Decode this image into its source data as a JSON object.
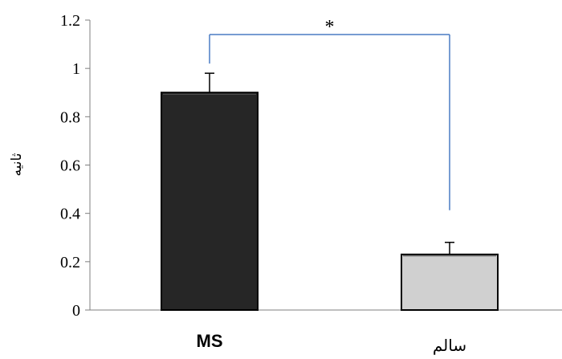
{
  "chart_data": {
    "type": "bar",
    "categories": [
      "MS",
      "سالم"
    ],
    "values": [
      0.9,
      0.23
    ],
    "errors": [
      0.08,
      0.05
    ],
    "bar_colors": [
      "#262626",
      "#d0d0d0"
    ],
    "bar_outline_color": "#000000",
    "ylabel": "ثانیه",
    "xlabel": "",
    "ylim": [
      0,
      1.2
    ],
    "yticks": [
      "0",
      "0.2",
      "0.4",
      "0.6",
      "0.8",
      "1",
      "1.2"
    ],
    "ytick_values": [
      0,
      0.2,
      0.4,
      0.6,
      0.8,
      1,
      1.2
    ],
    "significance": {
      "label": "*",
      "between": [
        0,
        1
      ],
      "bracket_value": 1.14,
      "color": "#4a7cc4"
    },
    "grid": false,
    "legend": "none"
  }
}
